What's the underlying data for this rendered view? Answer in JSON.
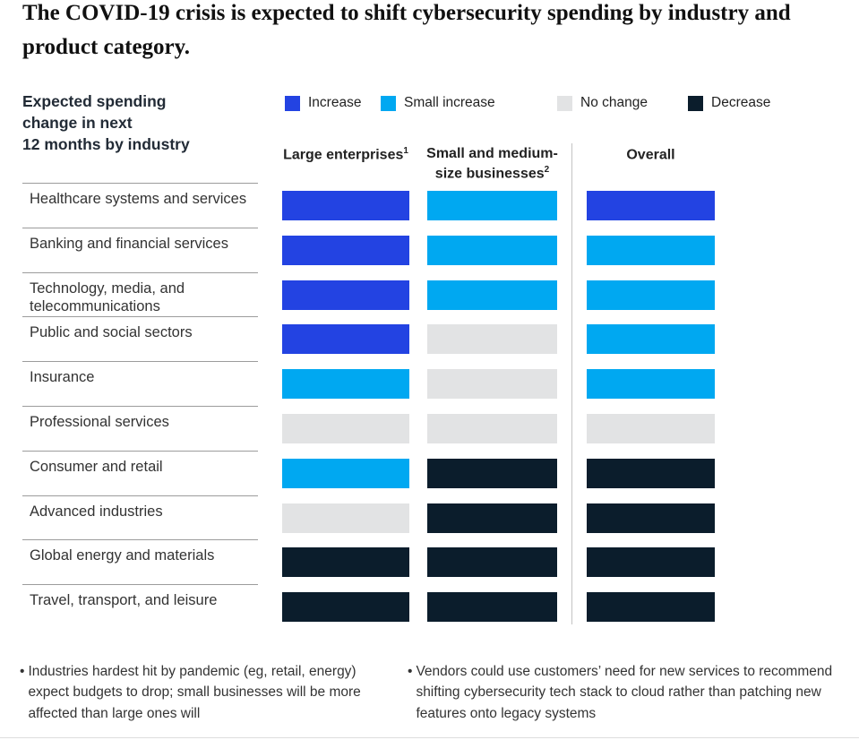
{
  "title": "The COVID-19 crisis is expected to shift cybersecurity spending by industry and product category.",
  "heading": {
    "line1": "Expected spending",
    "line2": "change in next",
    "line3": "12 months by industry"
  },
  "legend": [
    {
      "key": "increase",
      "label": "Increase",
      "color": "#2343e2"
    },
    {
      "key": "small_increase",
      "label": "Small increase",
      "color": "#00a8f1"
    },
    {
      "key": "no_change",
      "label": "No change",
      "color": "#e2e3e4"
    },
    {
      "key": "decrease",
      "label": "Decrease",
      "color": "#0b1d2c"
    }
  ],
  "columns": [
    {
      "label": "Large enterprises",
      "sup": "1"
    },
    {
      "label": "Small and medium-size businesses",
      "sup": "2"
    },
    {
      "label": "Overall",
      "sup": ""
    }
  ],
  "rows": [
    {
      "label": "Healthcare systems and services",
      "large": "increase",
      "smb": "small_increase",
      "overall": "increase"
    },
    {
      "label": "Banking and financial services",
      "large": "increase",
      "smb": "small_increase",
      "overall": "small_increase"
    },
    {
      "label": "Technology, media, and telecommunications",
      "large": "increase",
      "smb": "small_increase",
      "overall": "small_increase"
    },
    {
      "label": "Public and social sectors",
      "large": "increase",
      "smb": "no_change",
      "overall": "small_increase"
    },
    {
      "label": "Insurance",
      "large": "small_increase",
      "smb": "no_change",
      "overall": "small_increase"
    },
    {
      "label": "Professional services",
      "large": "no_change",
      "smb": "no_change",
      "overall": "no_change"
    },
    {
      "label": "Consumer and retail",
      "large": "small_increase",
      "smb": "decrease",
      "overall": "decrease"
    },
    {
      "label": "Advanced industries",
      "large": "no_change",
      "smb": "decrease",
      "overall": "decrease"
    },
    {
      "label": "Global energy and materials",
      "large": "decrease",
      "smb": "decrease",
      "overall": "decrease"
    },
    {
      "label": "Travel, transport, and leisure",
      "large": "decrease",
      "smb": "decrease",
      "overall": "decrease"
    }
  ],
  "footnotes": [
    "Industries hardest hit by pandemic (eg, retail, energy) expect budgets to drop; small businesses will be more affected than large ones will",
    "Vendors could use customers’ need for new services to recommend shifting cybersecurity tech stack to cloud rather than patching new features onto legacy systems"
  ],
  "chart_data": {
    "type": "heatmap",
    "title": "The COVID-19 crisis is expected to shift cybersecurity spending by industry and product category.",
    "subtitle": "Expected spending change in next 12 months by industry",
    "categories": [
      "Healthcare systems and services",
      "Banking and financial services",
      "Technology, media, and telecommunications",
      "Public and social sectors",
      "Insurance",
      "Professional services",
      "Consumer and retail",
      "Advanced industries",
      "Global energy and materials",
      "Travel, transport, and leisure"
    ],
    "series": [
      {
        "name": "Large enterprises",
        "values": [
          "Increase",
          "Increase",
          "Increase",
          "Increase",
          "Small increase",
          "No change",
          "Small increase",
          "No change",
          "Decrease",
          "Decrease"
        ]
      },
      {
        "name": "Small and medium-size businesses",
        "values": [
          "Small increase",
          "Small increase",
          "Small increase",
          "No change",
          "No change",
          "No change",
          "Decrease",
          "Decrease",
          "Decrease",
          "Decrease"
        ]
      },
      {
        "name": "Overall",
        "values": [
          "Increase",
          "Small increase",
          "Small increase",
          "Small increase",
          "Small increase",
          "No change",
          "Decrease",
          "Decrease",
          "Decrease",
          "Decrease"
        ]
      }
    ],
    "legend": [
      "Increase",
      "Small increase",
      "No change",
      "Decrease"
    ],
    "legend_position": "top",
    "value_colors": {
      "Increase": "#2343e2",
      "Small increase": "#00a8f1",
      "No change": "#e2e3e4",
      "Decrease": "#0b1d2c"
    }
  }
}
